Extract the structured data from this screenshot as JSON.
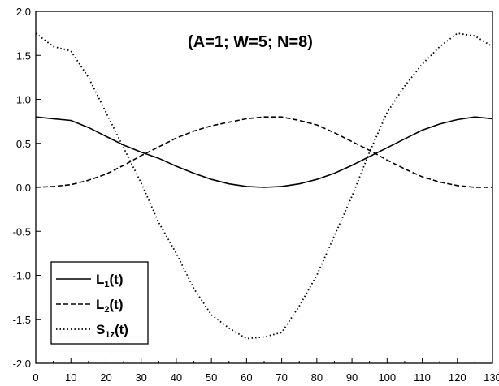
{
  "chart_data": {
    "type": "line",
    "title": "(A=1; W=5; N=8)",
    "xlabel": "",
    "ylabel": "",
    "xlim": [
      0,
      130
    ],
    "ylim": [
      -2.0,
      2.0
    ],
    "x_ticks": [
      "0",
      "10",
      "20",
      "30",
      "40",
      "50",
      "60",
      "70",
      "80",
      "90",
      "100",
      "110",
      "120",
      "130"
    ],
    "y_ticks": [
      "-2.0",
      "-1.5",
      "-1.0",
      "-0.5",
      "0.0",
      "0.5",
      "1.0",
      "1.5",
      "2.0"
    ],
    "grid": false,
    "legend": {
      "position": "bottom-left",
      "entries": [
        {
          "main": "L",
          "sub": "1",
          "tail": "(t)",
          "style": "solid"
        },
        {
          "main": "L",
          "sub": "2",
          "tail": "(t)",
          "style": "dashed"
        },
        {
          "main": "S",
          "sub": "1z",
          "tail": "(t)",
          "style": "dotted"
        }
      ]
    },
    "series": [
      {
        "name": "L1(t)",
        "style": "solid",
        "x": [
          0,
          5,
          10,
          15,
          20,
          25,
          30,
          35,
          40,
          45,
          50,
          55,
          60,
          65,
          70,
          75,
          80,
          85,
          90,
          95,
          100,
          105,
          110,
          115,
          120,
          125,
          130
        ],
        "y": [
          0.8,
          0.78,
          0.76,
          0.68,
          0.58,
          0.48,
          0.4,
          0.33,
          0.24,
          0.16,
          0.09,
          0.04,
          0.01,
          0.0,
          0.01,
          0.04,
          0.09,
          0.16,
          0.25,
          0.35,
          0.45,
          0.55,
          0.65,
          0.72,
          0.77,
          0.8,
          0.78
        ]
      },
      {
        "name": "L2(t)",
        "style": "dashed",
        "x": [
          0,
          5,
          10,
          15,
          20,
          25,
          30,
          35,
          40,
          45,
          50,
          55,
          60,
          65,
          70,
          75,
          80,
          85,
          90,
          95,
          100,
          105,
          110,
          115,
          120,
          125,
          130
        ],
        "y": [
          0.0,
          0.01,
          0.03,
          0.08,
          0.15,
          0.25,
          0.36,
          0.46,
          0.56,
          0.64,
          0.7,
          0.74,
          0.78,
          0.8,
          0.8,
          0.76,
          0.71,
          0.62,
          0.52,
          0.42,
          0.31,
          0.21,
          0.12,
          0.06,
          0.02,
          0.0,
          0.0
        ]
      },
      {
        "name": "S1z(t)",
        "style": "dotted",
        "x": [
          0,
          5,
          10,
          15,
          20,
          25,
          30,
          35,
          40,
          45,
          50,
          55,
          60,
          65,
          70,
          75,
          80,
          85,
          90,
          95,
          100,
          105,
          110,
          115,
          120,
          125,
          130
        ],
        "y": [
          1.75,
          1.6,
          1.55,
          1.25,
          0.85,
          0.45,
          0.05,
          -0.4,
          -0.75,
          -1.15,
          -1.45,
          -1.6,
          -1.72,
          -1.7,
          -1.65,
          -1.35,
          -1.0,
          -0.55,
          -0.1,
          0.4,
          0.85,
          1.15,
          1.4,
          1.6,
          1.75,
          1.72,
          1.6
        ]
      }
    ]
  }
}
